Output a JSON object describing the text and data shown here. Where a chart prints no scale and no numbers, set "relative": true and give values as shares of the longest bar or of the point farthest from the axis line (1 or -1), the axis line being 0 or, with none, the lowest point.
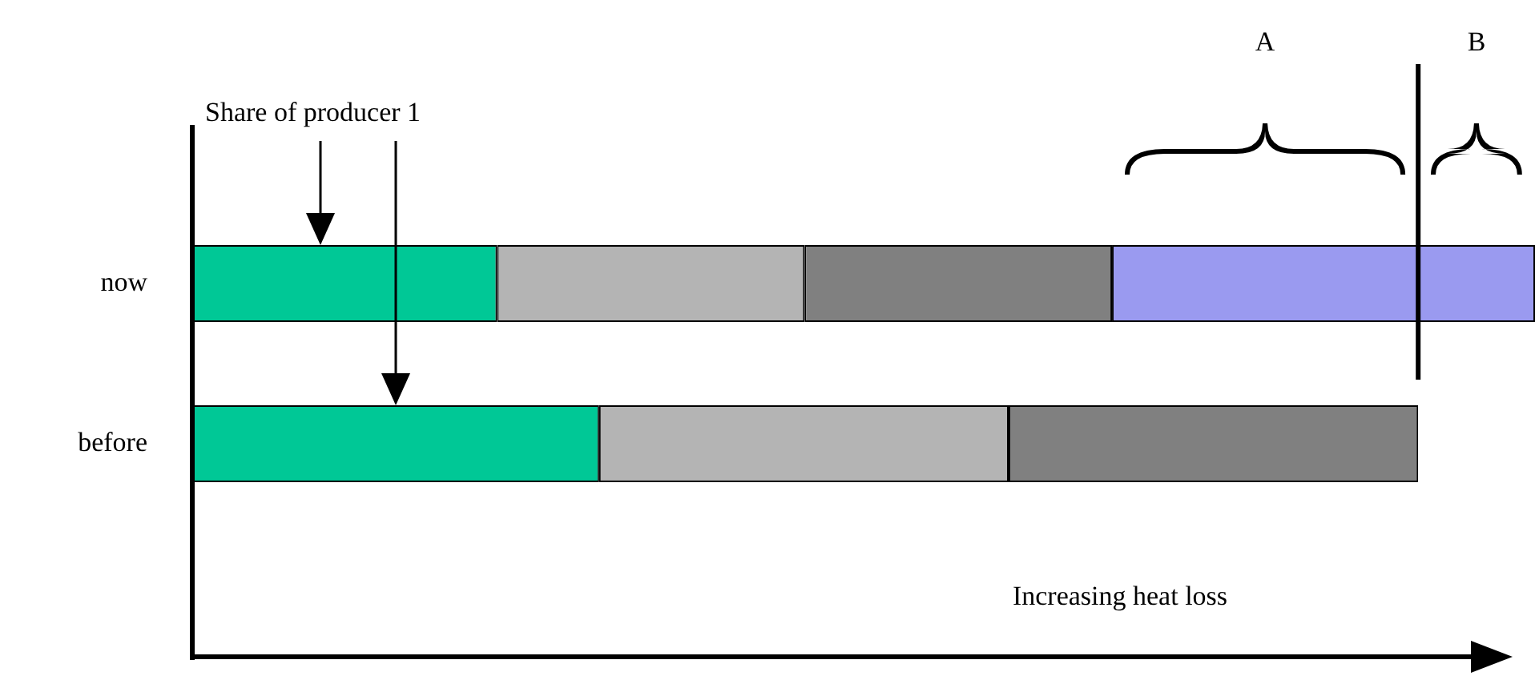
{
  "chart_data": {
    "type": "bar",
    "orientation": "horizontal",
    "stacked": true,
    "relative": true,
    "categories": [
      "now",
      "before"
    ],
    "series": [
      {
        "color": "#00c896",
        "values": [
          0.227,
          0.303
        ]
      },
      {
        "color": "#b4b4b4",
        "values": [
          0.229,
          0.305
        ]
      },
      {
        "color": "#808080",
        "values": [
          0.229,
          0.305
        ]
      },
      {
        "color": "#9a9af0",
        "values": [
          0.315,
          null
        ]
      }
    ],
    "ref_lines": [
      {
        "axis": "x",
        "value": 0.913,
        "color": "#000000"
      }
    ],
    "annotations": [
      "Share of producer 1",
      "A",
      "B",
      "Increasing heat loss"
    ],
    "legend": false
  }
}
